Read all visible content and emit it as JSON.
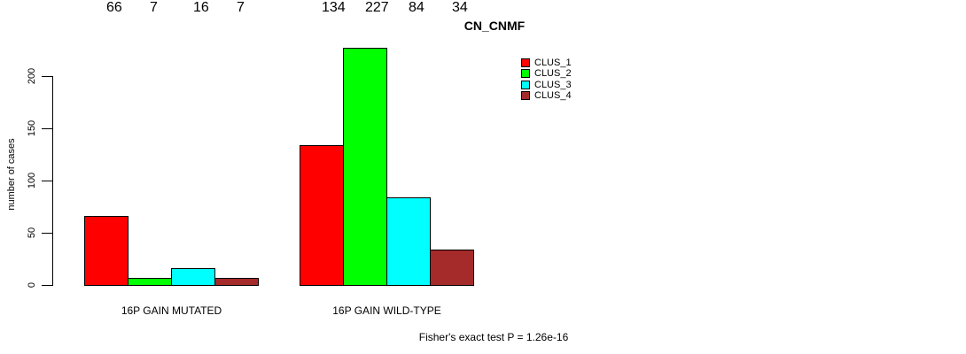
{
  "chart_data": {
    "type": "bar",
    "title": "CN_CNMF",
    "ylabel": "number of cases",
    "ylim": [
      0,
      230
    ],
    "yticks": [
      0,
      50,
      100,
      150,
      200
    ],
    "grid": false,
    "legend_position": "top-right",
    "series": [
      {
        "name": "CLUS_1",
        "color": "#FF0000"
      },
      {
        "name": "CLUS_2",
        "color": "#00FF00"
      },
      {
        "name": "CLUS_3",
        "color": "#00FFFF"
      },
      {
        "name": "CLUS_4",
        "color": "#A52A2A"
      }
    ],
    "groups": [
      {
        "label": "16P GAIN MUTATED",
        "values": [
          66,
          7,
          16,
          7
        ]
      },
      {
        "label": "16P GAIN WILD-TYPE",
        "values": [
          134,
          227,
          84,
          34
        ]
      }
    ],
    "footnote": "Fisher's exact test P = 1.26e-16"
  }
}
